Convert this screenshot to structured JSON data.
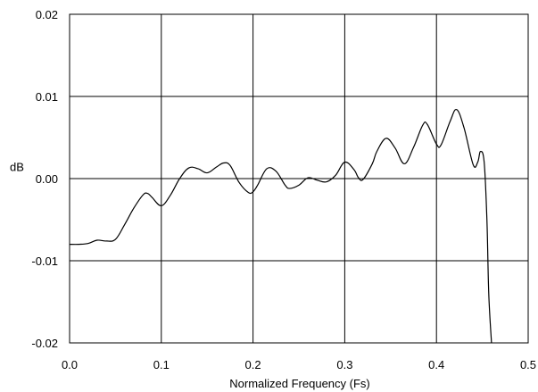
{
  "chart_data": {
    "type": "line",
    "title": "",
    "xlabel": "Normalized Frequency (Fs)",
    "ylabel": "dB",
    "xlim": [
      0.0,
      0.5
    ],
    "ylim": [
      -0.02,
      0.02
    ],
    "x_ticks": [
      0.0,
      0.1,
      0.2,
      0.3,
      0.4,
      0.5
    ],
    "x_tick_labels": [
      "0.0",
      "0.1",
      "0.2",
      "0.3",
      "0.4",
      "0.5"
    ],
    "y_ticks": [
      0.02,
      0.01,
      0.0,
      -0.01,
      -0.02
    ],
    "y_tick_labels": [
      "0.02",
      "0.01",
      "0.00",
      "-0.01",
      "-0.02"
    ],
    "grid": true,
    "zero_line": true,
    "colors": {
      "line": "#000000",
      "grid": "#000000",
      "frame": "#000000",
      "background": "#ffffff"
    },
    "series": [
      {
        "x": [
          0.0,
          0.01,
          0.02,
          0.03,
          0.04,
          0.05,
          0.06,
          0.07,
          0.08,
          0.085,
          0.09,
          0.1,
          0.11,
          0.12,
          0.13,
          0.14,
          0.15,
          0.16,
          0.168,
          0.175,
          0.185,
          0.195,
          0.2,
          0.205,
          0.215,
          0.225,
          0.235,
          0.24,
          0.25,
          0.26,
          0.27,
          0.28,
          0.29,
          0.3,
          0.31,
          0.315,
          0.32,
          0.33,
          0.335,
          0.345,
          0.355,
          0.365,
          0.375,
          0.385,
          0.39,
          0.4,
          0.405,
          0.415,
          0.422,
          0.43,
          0.44,
          0.445,
          0.448,
          0.452,
          0.455,
          0.457,
          0.46
        ],
        "y": [
          -0.008,
          -0.008,
          -0.0079,
          -0.0075,
          -0.0076,
          -0.0074,
          -0.0056,
          -0.0036,
          -0.002,
          -0.0018,
          -0.0023,
          -0.0033,
          -0.002,
          0.0,
          0.0013,
          0.0012,
          0.0007,
          0.0014,
          0.0019,
          0.0016,
          -0.0005,
          -0.0017,
          -0.0016,
          -0.0008,
          0.0012,
          0.0009,
          -0.0008,
          -0.0012,
          -0.0008,
          0.0001,
          -0.0002,
          -0.0004,
          0.0004,
          0.002,
          0.0011,
          0.0001,
          -0.0001,
          0.0018,
          0.0033,
          0.0049,
          0.0037,
          0.0018,
          0.0038,
          0.0065,
          0.0066,
          0.0042,
          0.0041,
          0.007,
          0.0084,
          0.0062,
          0.0017,
          0.002,
          0.0033,
          0.002,
          -0.005,
          -0.014,
          -0.02
        ]
      }
    ]
  }
}
